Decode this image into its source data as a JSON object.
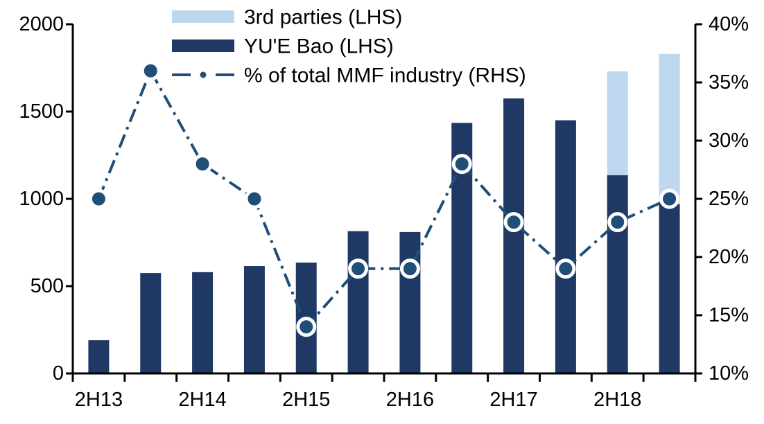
{
  "chart_data": {
    "type": "bar",
    "subtype": "stacked-bars-with-line-combo-dual-axis",
    "title": "",
    "n_points": 12,
    "x_tick_labels": [
      "2H13",
      "2H14",
      "2H15",
      "2H16",
      "2H17",
      "2H18"
    ],
    "x_label_point_indices": [
      0,
      2,
      4,
      6,
      8,
      10
    ],
    "series": [
      {
        "name": "3rd parties (LHS)",
        "type": "bar",
        "stack": "top",
        "axis": "left",
        "color": "#BDD7EE",
        "values": [
          0,
          0,
          0,
          0,
          0,
          0,
          0,
          0,
          0,
          0,
          595,
          860
        ]
      },
      {
        "name": "YU'E Bao (LHS)",
        "type": "bar",
        "stack": "bottom",
        "axis": "left",
        "color": "#203864",
        "values": [
          190,
          575,
          580,
          615,
          635,
          815,
          810,
          1435,
          1575,
          1450,
          1135,
          970
        ]
      },
      {
        "name": "% of total MMF industry (RHS)",
        "type": "line",
        "style": "dash-dot",
        "axis": "right",
        "color": "#1F4E79",
        "marker_fill": "#1F4E79",
        "marker_ring": "#FFFFFF",
        "values": [
          25,
          36,
          28,
          25,
          14,
          19,
          19,
          28,
          23,
          19,
          23,
          25
        ]
      }
    ],
    "left_axis": {
      "min": 0,
      "max": 2000,
      "step": 500,
      "tick_labels": [
        "0",
        "500",
        "1000",
        "1500",
        "2000"
      ]
    },
    "right_axis": {
      "min": 10,
      "max": 40,
      "step": 5,
      "tick_labels": [
        "10%",
        "15%",
        "20%",
        "25%",
        "30%",
        "35%",
        "40%"
      ]
    },
    "grid": false,
    "legend_position": "top-center",
    "background": "#FFFFFF",
    "axis_color": "#000000"
  }
}
